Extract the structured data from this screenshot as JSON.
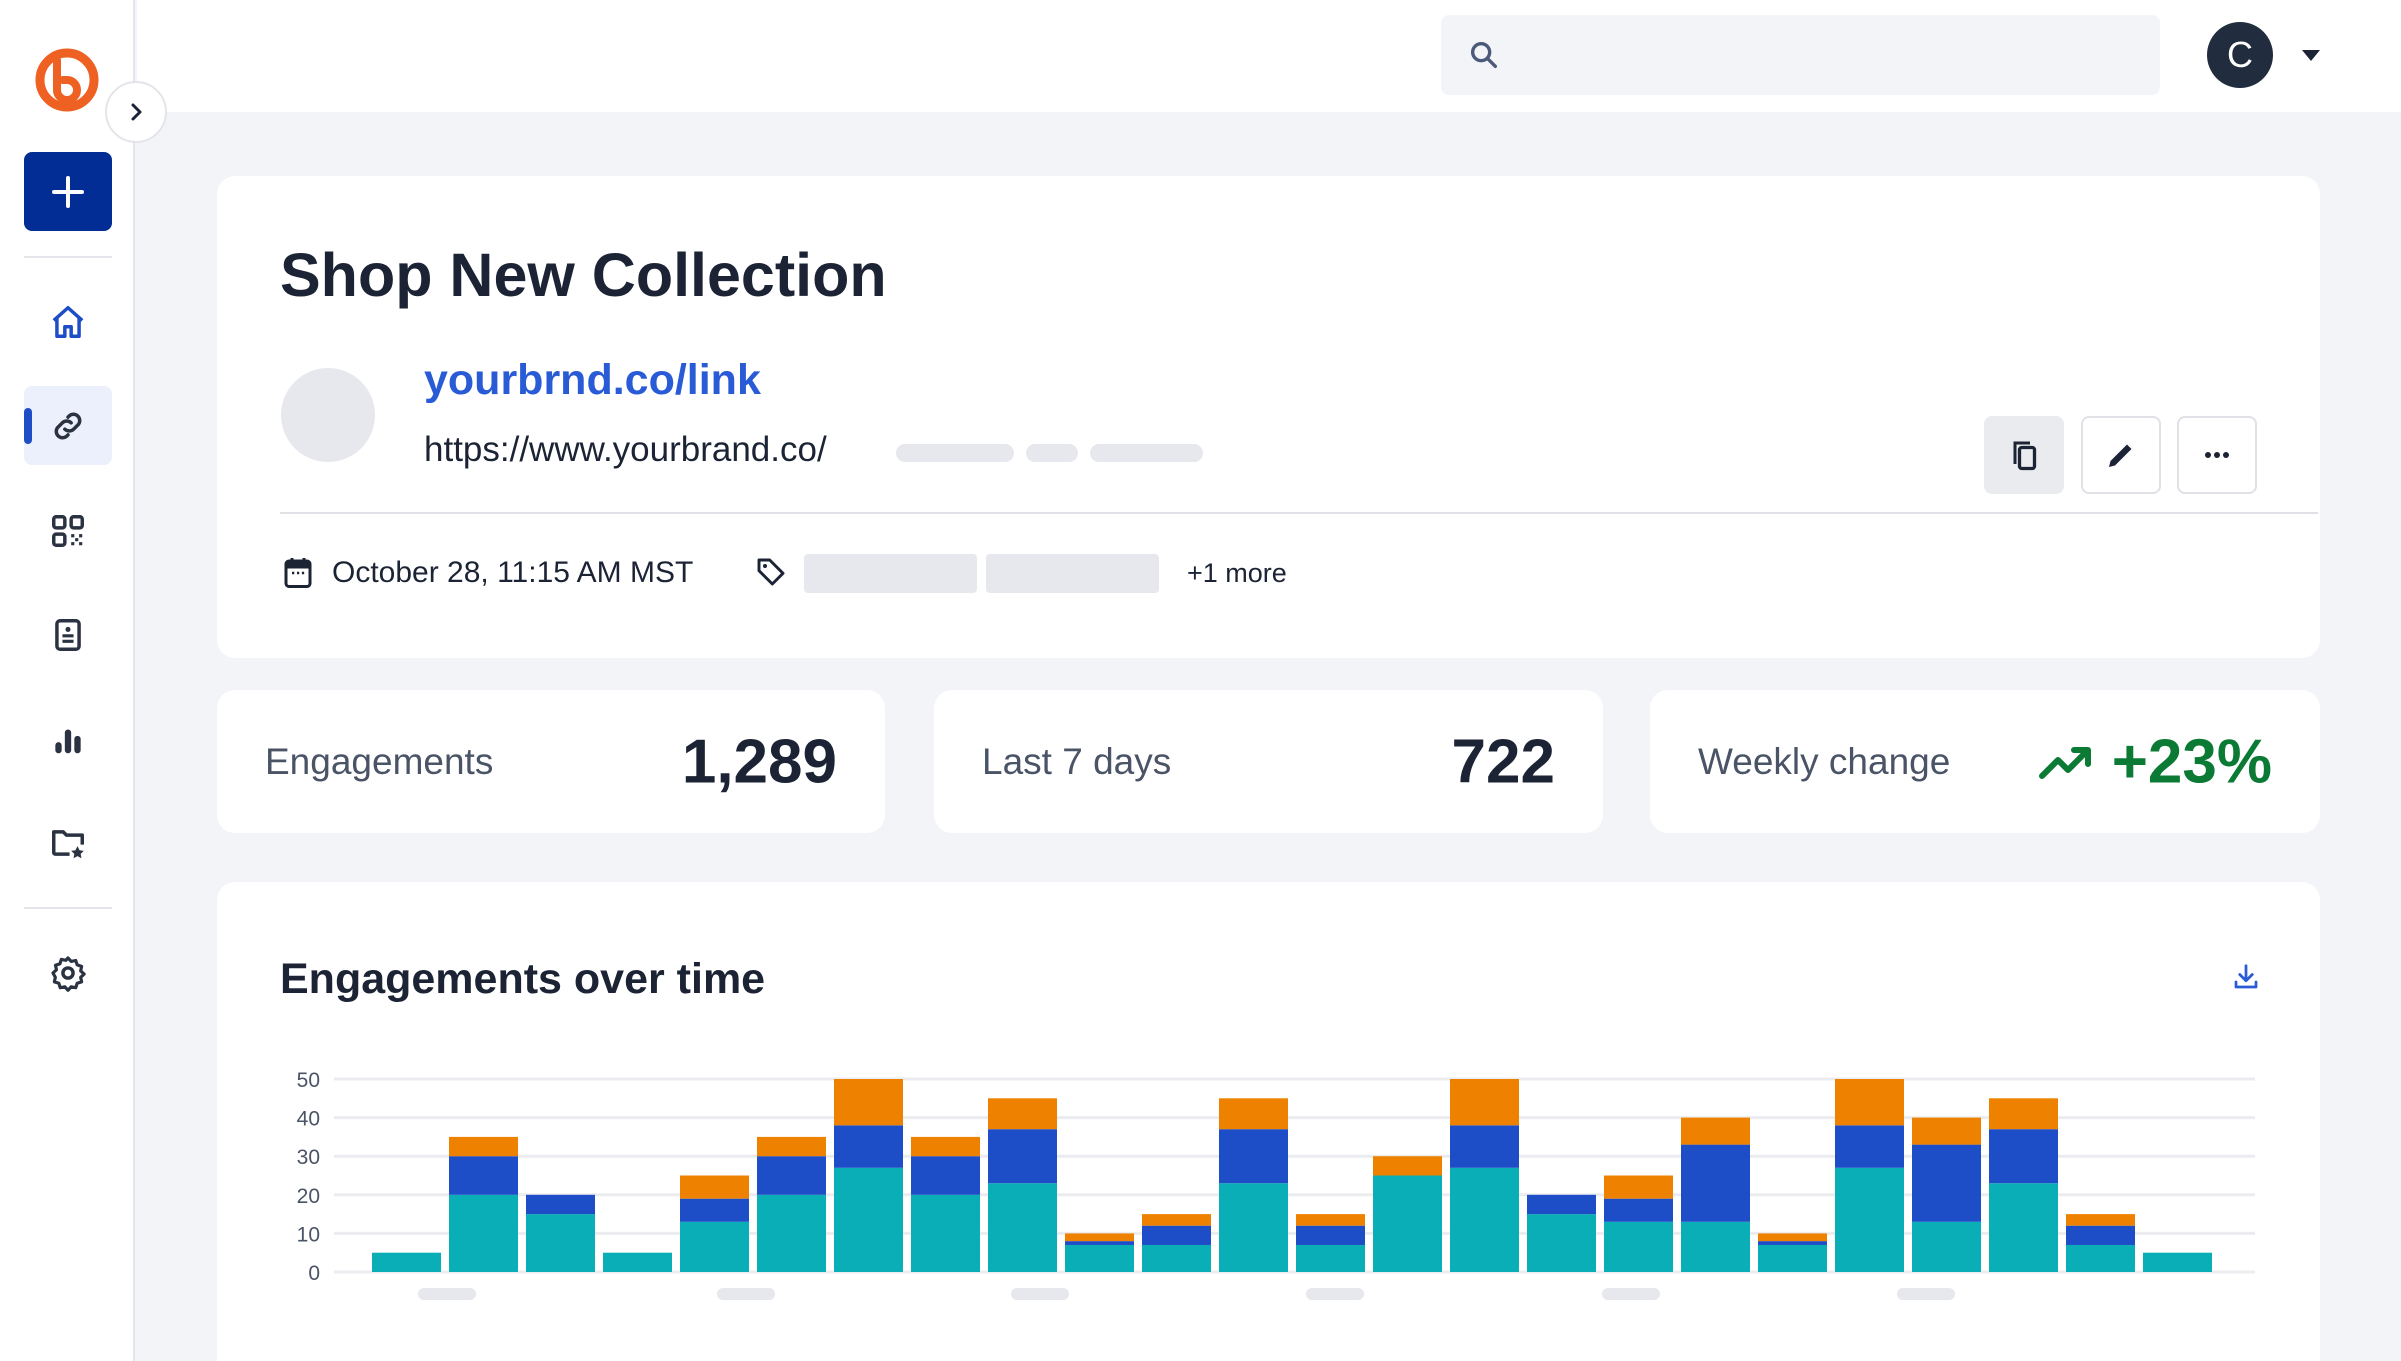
{
  "sidebar": {
    "items": [
      {
        "label": "home",
        "icon": "home-icon",
        "active": false
      },
      {
        "label": "links",
        "icon": "link-icon",
        "active": true
      },
      {
        "label": "qr-codes",
        "icon": "qr-code-icon",
        "active": false
      },
      {
        "label": "pages",
        "icon": "document-icon",
        "active": false
      },
      {
        "label": "analytics",
        "icon": "bar-chart-icon",
        "active": false
      },
      {
        "label": "campaigns",
        "icon": "folder-star-icon",
        "active": false
      },
      {
        "label": "settings",
        "icon": "gear-icon",
        "active": false
      }
    ]
  },
  "header": {
    "search": {
      "placeholder": "",
      "value": ""
    },
    "avatar_initial": "C"
  },
  "link": {
    "title": "Shop New Collection",
    "short_link": "yourbrnd.co/link",
    "destination": "https://www.yourbrand.co/",
    "created": "October 28, 11:15 AM MST",
    "tags_more": "+1 more"
  },
  "stats": {
    "engagements": {
      "label": "Engagements",
      "value": "1,289"
    },
    "last7": {
      "label": "Last 7 days",
      "value": "722"
    },
    "weekly": {
      "label": "Weekly change",
      "value": "+23%",
      "color": "#0b7a34"
    }
  },
  "colors": {
    "accent": "#022d94",
    "link": "#2a5bd7",
    "logo": "#ee6123"
  },
  "chart_data": {
    "type": "bar",
    "stacked": true,
    "title": "Engagements over time",
    "yticks": [
      "0",
      "10",
      "20",
      "30",
      "40",
      "50"
    ],
    "ylim": [
      0,
      50
    ],
    "grid": true,
    "x_labels_hidden": true,
    "series": [
      {
        "color": "#0aaeb7",
        "values": [
          5,
          20,
          15,
          5,
          13,
          20,
          27,
          20,
          23,
          7,
          7,
          23,
          7,
          25,
          27,
          15,
          13,
          13,
          7,
          27,
          13,
          23,
          7,
          5
        ]
      },
      {
        "color": "#1e4dc8",
        "values": [
          0,
          10,
          5,
          0,
          6,
          10,
          11,
          10,
          14,
          1,
          5,
          14,
          5,
          0,
          11,
          5,
          6,
          20,
          1,
          11,
          20,
          14,
          5,
          0
        ]
      },
      {
        "color": "#ee8200",
        "values": [
          0,
          5,
          0,
          0,
          6,
          5,
          12,
          5,
          8,
          2,
          3,
          8,
          3,
          5,
          12,
          0,
          6,
          7,
          2,
          12,
          7,
          8,
          3,
          0
        ]
      }
    ]
  }
}
